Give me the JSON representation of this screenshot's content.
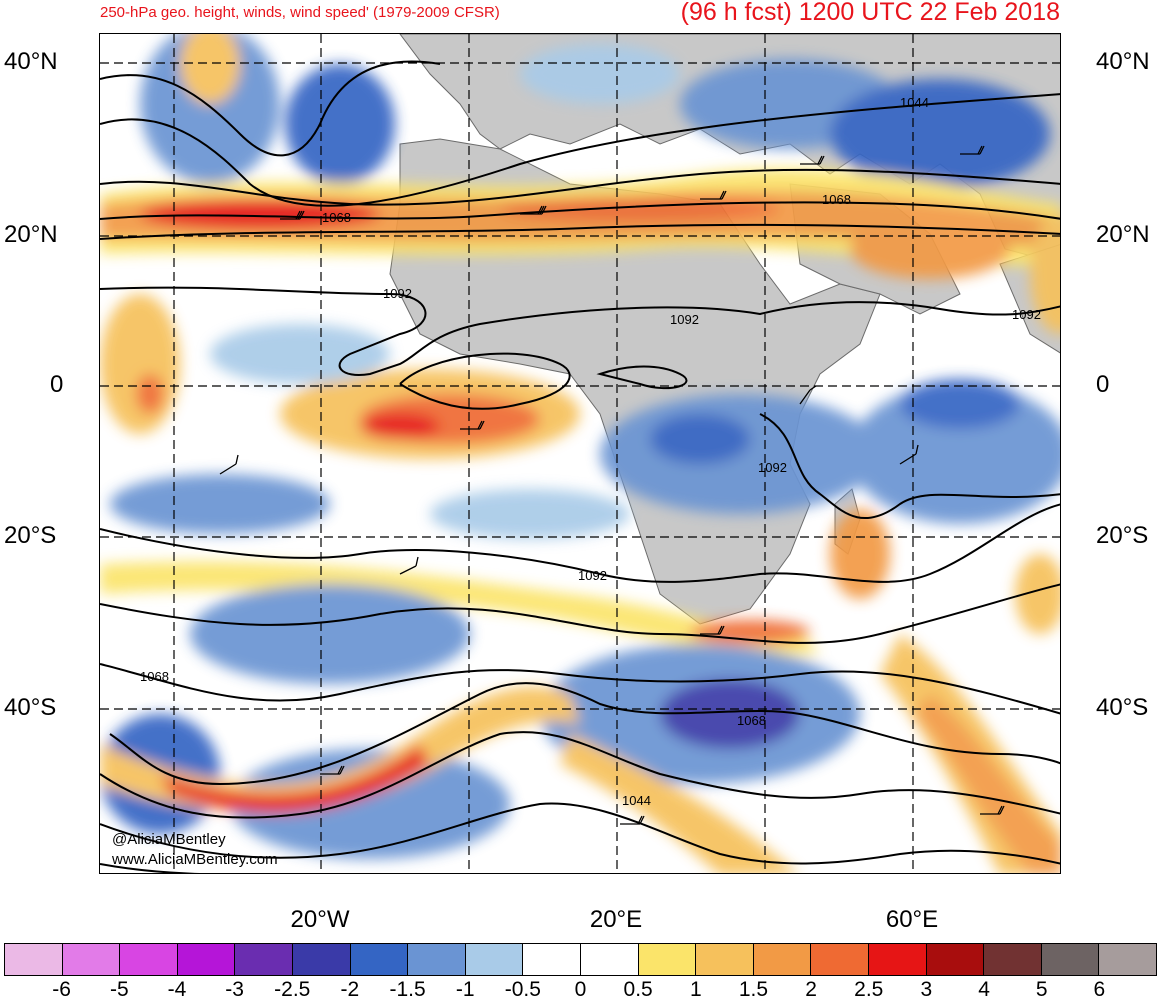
{
  "header": {
    "subtitle": "250-hPa geo. height, winds, wind speed' (1979-2009 CFSR)",
    "forecast_title": "(96 h fcst) 1200 UTC 22 Feb 2018"
  },
  "map": {
    "lat_labels_left": [
      "40°N",
      "20°N",
      "0",
      "20°S",
      "40°S"
    ],
    "lat_labels_right": [
      "40°N",
      "20°N",
      "0",
      "20°S",
      "40°S"
    ],
    "lon_labels": [
      "20°W",
      "20°E",
      "60°E"
    ],
    "contour_labels": [
      "1044",
      "1068",
      "1068",
      "1092",
      "1092",
      "1092",
      "1092",
      "1092",
      "1068",
      "1068",
      "1044"
    ],
    "credit_handle": "@AliciaMBentley",
    "credit_site": "www.AliciaMBentley.com",
    "land_color": "#c8c8c8",
    "contour_color": "#000000"
  },
  "colorbar": {
    "ticks": [
      "-6",
      "-5",
      "-4",
      "-3",
      "-2.5",
      "-2",
      "-1.5",
      "-1",
      "-0.5",
      "0",
      "0.5",
      "1",
      "1.5",
      "2",
      "2.5",
      "3",
      "4",
      "5",
      "6"
    ],
    "colors": [
      "#ebb9e6",
      "#e27be8",
      "#d845e3",
      "#b515d8",
      "#6a2db0",
      "#3a3aa8",
      "#3465c4",
      "#6a94d3",
      "#a9cbe8",
      "#ffffff",
      "#ffffff",
      "#fbe46a",
      "#f6c15c",
      "#f29a45",
      "#ef6a33",
      "#e61515",
      "#a80d0d",
      "#713232",
      "#6d6363",
      "#a69c9c"
    ]
  }
}
